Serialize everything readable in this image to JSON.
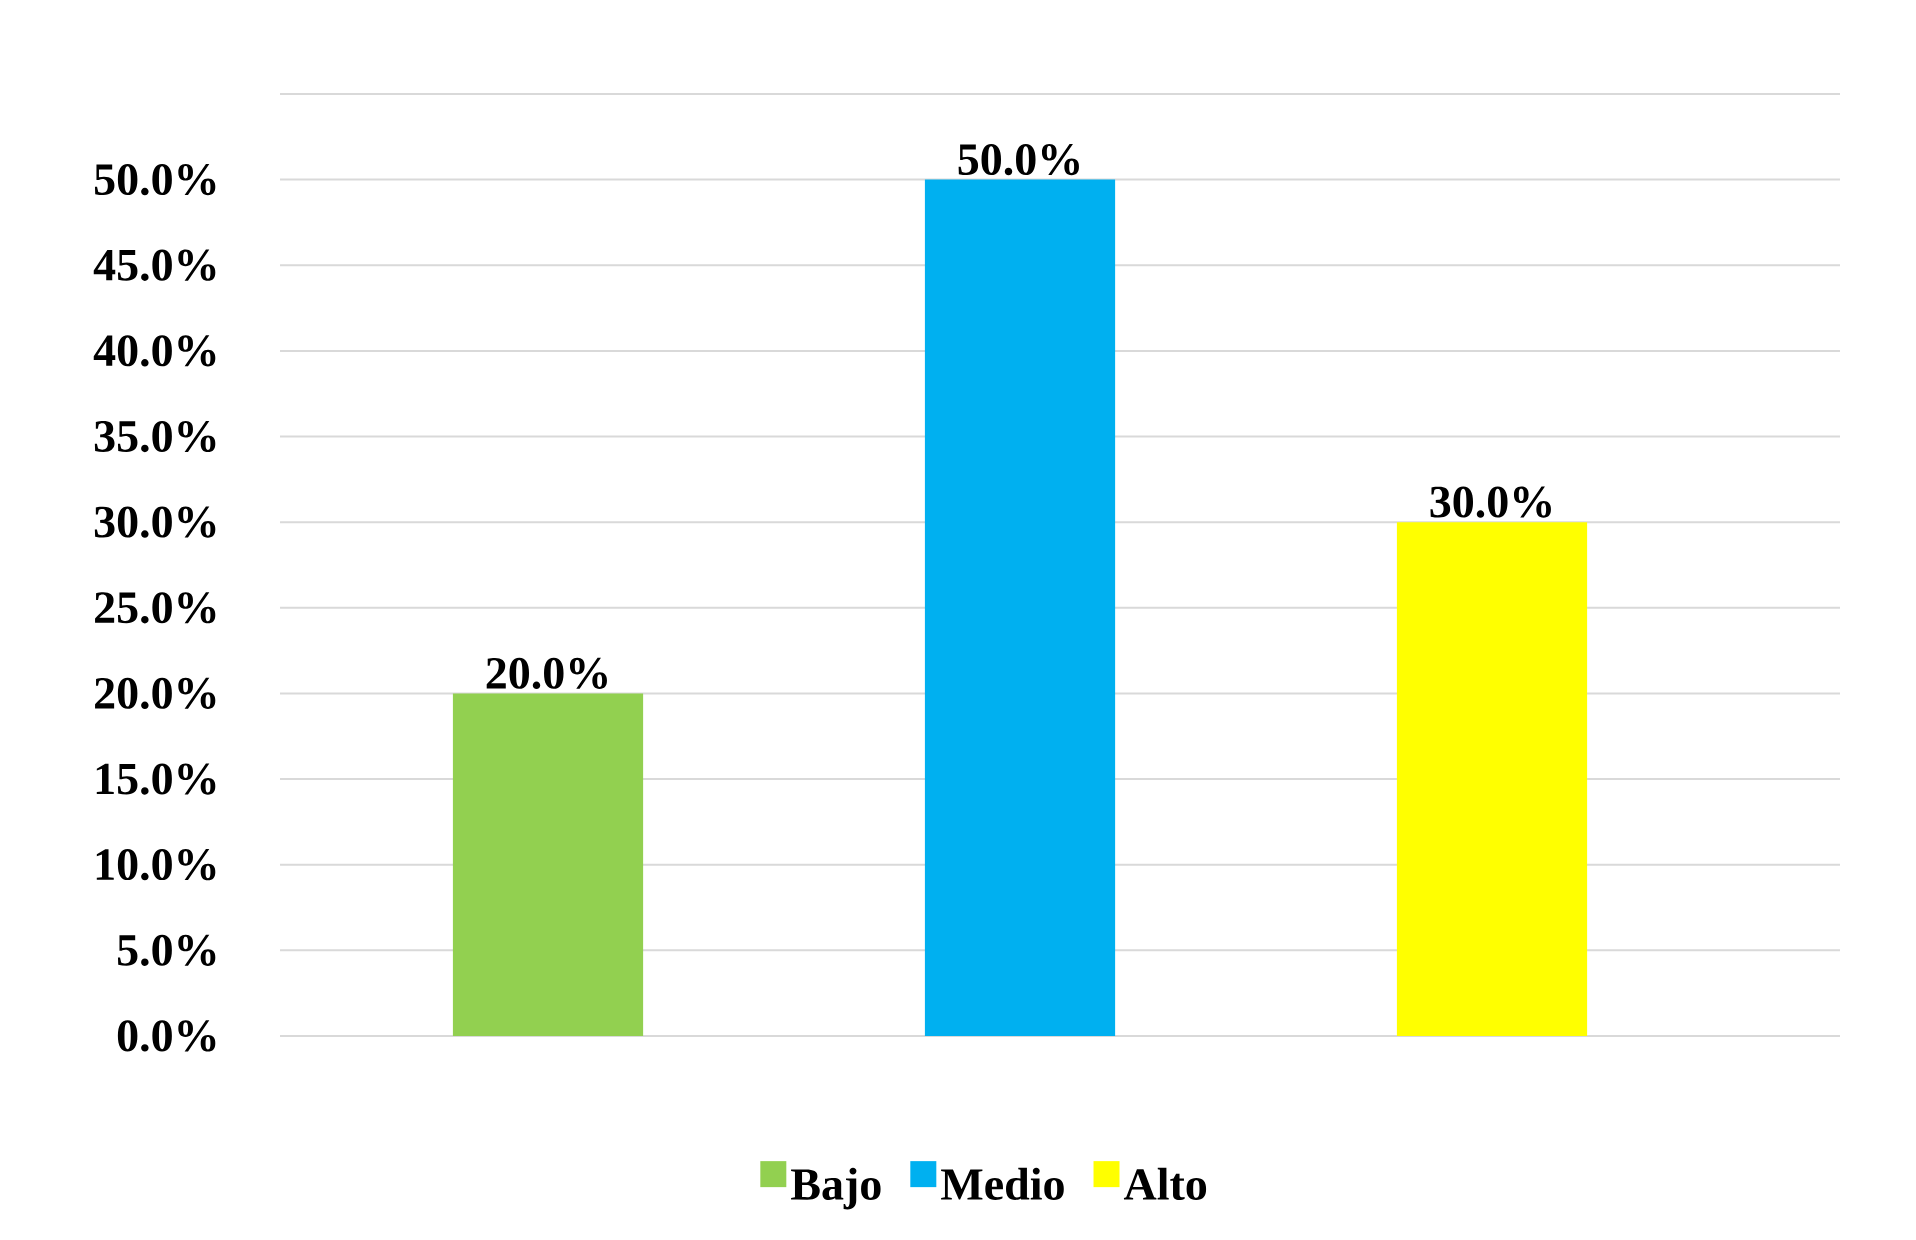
{
  "chart_data": {
    "type": "bar",
    "categories": [
      null,
      null,
      null
    ],
    "series": [
      {
        "name": "Bajo",
        "color": "#92d050",
        "values": [
          20,
          null,
          null
        ],
        "value_labels": [
          "20.0%",
          null,
          null
        ]
      },
      {
        "name": "Medio",
        "color": "#00b0f0",
        "values": [
          null,
          50,
          null
        ],
        "value_labels": [
          null,
          "50.0%",
          null
        ]
      },
      {
        "name": "Alto",
        "color": "#ffff00",
        "values": [
          null,
          null,
          30
        ],
        "value_labels": [
          null,
          null,
          "30.0%"
        ]
      }
    ],
    "ylim": [
      0,
      55
    ],
    "yticks": [
      {
        "value": 0,
        "label": "0.0%"
      },
      {
        "value": 5,
        "label": "5.0%"
      },
      {
        "value": 10,
        "label": "10.0%"
      },
      {
        "value": 15,
        "label": "15.0%"
      },
      {
        "value": 20,
        "label": "20.0%"
      },
      {
        "value": 25,
        "label": "25.0%"
      },
      {
        "value": 30,
        "label": "30.0%"
      },
      {
        "value": 35,
        "label": "35.0%"
      },
      {
        "value": 40,
        "label": "40.0%"
      },
      {
        "value": 45,
        "label": "45.0%"
      },
      {
        "value": 50,
        "label": "50.0%"
      },
      {
        "value": 55,
        "label": null
      }
    ],
    "grid": "y",
    "legend": "bottom"
  }
}
